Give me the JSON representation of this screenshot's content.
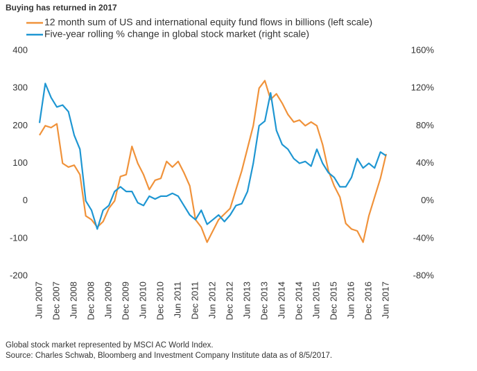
{
  "chart_data": {
    "type": "line",
    "title": "Buying has returned in 2017",
    "categories": [
      "Jun 2007",
      null,
      null,
      "Dec 2007",
      null,
      null,
      "Jun 2008",
      null,
      null,
      "Dec 2008",
      null,
      null,
      "Jun 2009",
      null,
      null,
      "Dec 2009",
      null,
      null,
      "Jun 2010",
      null,
      null,
      "Dec 2010",
      null,
      null,
      "Jun 2011",
      null,
      null,
      "Dec 2011",
      null,
      null,
      "Jun 2012",
      null,
      null,
      "Dec 2012",
      null,
      null,
      "Jun 2013",
      null,
      null,
      "Dec 2013",
      null,
      null,
      "Jun 2014",
      null,
      null,
      "Dec 2014",
      null,
      null,
      "Jun 2015",
      null,
      null,
      "Dec 2015",
      null,
      null,
      "Jun 2016",
      null,
      null,
      "Dec 2016",
      null,
      null,
      "Jun 2017"
    ],
    "series": [
      {
        "name": "12 month sum of US and international equity fund flows in billions (left scale)",
        "color": "#f0923a",
        "axis": "y",
        "values": [
          175,
          200,
          195,
          205,
          100,
          90,
          95,
          70,
          -40,
          -50,
          -70,
          -55,
          -20,
          0,
          65,
          70,
          145,
          100,
          70,
          30,
          55,
          60,
          105,
          90,
          105,
          75,
          40,
          -50,
          -70,
          -110,
          -80,
          -50,
          -35,
          -20,
          30,
          80,
          140,
          200,
          300,
          320,
          270,
          285,
          260,
          230,
          210,
          215,
          200,
          210,
          200,
          150,
          80,
          40,
          10,
          -60,
          -75,
          -80,
          -110,
          -40,
          10,
          60,
          125
        ]
      },
      {
        "name": "Five-year rolling % change in global stock market (right scale)",
        "color": "#1e96d2",
        "axis": "y2",
        "values": [
          83,
          125,
          110,
          100,
          102,
          95,
          70,
          55,
          0,
          -10,
          -30,
          -10,
          -5,
          10,
          15,
          10,
          10,
          -2,
          -5,
          5,
          2,
          5,
          5,
          8,
          5,
          -5,
          -15,
          -20,
          -10,
          -25,
          -20,
          -15,
          -22,
          -15,
          -5,
          -3,
          10,
          40,
          80,
          85,
          115,
          75,
          60,
          55,
          45,
          40,
          42,
          37,
          55,
          40,
          30,
          25,
          15,
          15,
          25,
          45,
          35,
          40,
          35,
          52,
          48
        ]
      }
    ],
    "ylim": [
      -200,
      400
    ],
    "yticks": [
      -200,
      -100,
      0,
      100,
      200,
      300,
      400
    ],
    "y2lim": [
      -80,
      160
    ],
    "y2ticks": [
      {
        "value": -80,
        "label": "-80%"
      },
      {
        "value": -40,
        "label": "-40%"
      },
      {
        "value": 0,
        "label": "0%"
      },
      {
        "value": 40,
        "label": "40%"
      },
      {
        "value": 80,
        "label": "80%"
      },
      {
        "value": 120,
        "label": "120%"
      },
      {
        "value": 160,
        "label": "160%"
      }
    ],
    "notes": [
      "Global stock market represented by MSCI AC World Index.",
      "Source: Charles Schwab, Bloomberg and Investment Company Institute data as of 8/5/2017."
    ]
  }
}
